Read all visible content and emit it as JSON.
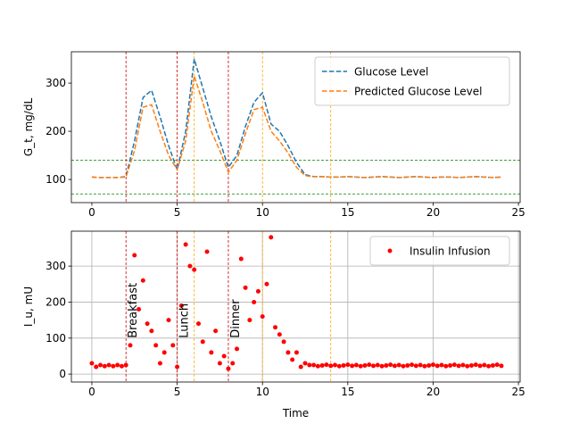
{
  "chart_data": [
    {
      "type": "line",
      "ylabel": "G_t, mg/dL",
      "x": [
        0,
        0.5,
        1,
        1.5,
        2,
        2.5,
        3,
        3.5,
        4,
        4.5,
        5,
        5.5,
        6,
        6.5,
        7,
        7.5,
        8,
        8.5,
        9,
        9.5,
        10,
        10.5,
        11,
        11.5,
        12,
        12.5,
        13,
        13.5,
        14,
        14.5,
        15,
        15.5,
        16,
        16.5,
        17,
        17.5,
        18,
        18.5,
        19,
        19.5,
        20,
        20.5,
        21,
        21.5,
        22,
        22.5,
        23,
        23.5,
        24
      ],
      "series": [
        {
          "name": "Glucose Level",
          "color": "#1f77b4",
          "values": [
            105,
            104,
            104,
            104,
            106,
            180,
            270,
            285,
            230,
            170,
            120,
            200,
            350,
            290,
            230,
            180,
            125,
            150,
            210,
            260,
            280,
            215,
            200,
            170,
            135,
            110,
            106,
            106,
            105,
            105,
            106,
            105,
            104,
            105,
            106,
            105,
            104,
            105,
            106,
            105,
            104,
            105,
            105,
            104,
            105,
            106,
            105,
            104,
            105
          ]
        },
        {
          "name": "Predicted Glucose Level",
          "color": "#ff7f0e",
          "values": [
            105,
            104,
            104,
            104,
            105,
            160,
            250,
            255,
            200,
            150,
            120,
            180,
            315,
            260,
            200,
            160,
            115,
            140,
            195,
            245,
            250,
            200,
            180,
            155,
            125,
            108,
            106,
            106,
            105,
            105,
            106,
            105,
            104,
            105,
            106,
            105,
            104,
            105,
            106,
            105,
            104,
            105,
            105,
            104,
            105,
            106,
            105,
            104,
            105
          ]
        }
      ],
      "xlim": [
        -1.2,
        25.1
      ],
      "ylim": [
        52,
        365
      ],
      "xticks": [
        0,
        5,
        10,
        15,
        20,
        25
      ],
      "yticks": [
        100,
        200,
        300
      ],
      "grid": false,
      "legend": "upper right",
      "hlines": [
        {
          "value": 70,
          "color": "green"
        },
        {
          "value": 140,
          "color": "green"
        }
      ],
      "vlines": [
        {
          "value": 2,
          "color": "#cc0000"
        },
        {
          "value": 5,
          "color": "#cc0000"
        },
        {
          "value": 8,
          "color": "#cc0000"
        },
        {
          "value": 6,
          "color": "orange"
        },
        {
          "value": 10,
          "color": "orange"
        },
        {
          "value": 14,
          "color": "orange"
        }
      ]
    },
    {
      "type": "scatter",
      "ylabel": "I_u, mU",
      "xlabel": "Time",
      "x": [
        0,
        0.25,
        0.5,
        0.75,
        1,
        1.25,
        1.5,
        1.75,
        2,
        2.25,
        2.5,
        2.75,
        3,
        3.25,
        3.5,
        3.75,
        4,
        4.25,
        4.5,
        4.75,
        5,
        5.25,
        5.5,
        5.75,
        6,
        6.25,
        6.5,
        6.75,
        7,
        7.25,
        7.5,
        7.75,
        8,
        8.25,
        8.5,
        8.75,
        9,
        9.25,
        9.5,
        9.75,
        10,
        10.25,
        10.5,
        10.75,
        11,
        11.25,
        11.5,
        11.75,
        12,
        12.25,
        12.5,
        12.75,
        13,
        13.25,
        13.5,
        13.75,
        14,
        14.25,
        14.5,
        14.75,
        15,
        15.25,
        15.5,
        15.75,
        16,
        16.25,
        16.5,
        16.75,
        17,
        17.25,
        17.5,
        17.75,
        18,
        18.25,
        18.5,
        18.75,
        19,
        19.25,
        19.5,
        19.75,
        20,
        20.25,
        20.5,
        20.75,
        21,
        21.25,
        21.5,
        21.75,
        22,
        22.25,
        22.5,
        22.75,
        23,
        23.25,
        23.5,
        23.75,
        24
      ],
      "series": [
        {
          "name": "Insulin Infusion",
          "color": "red",
          "values": [
            30,
            20,
            25,
            22,
            25,
            22,
            25,
            22,
            25,
            80,
            330,
            180,
            260,
            140,
            120,
            80,
            30,
            60,
            150,
            80,
            20,
            190,
            360,
            300,
            290,
            140,
            90,
            340,
            60,
            120,
            30,
            50,
            15,
            30,
            70,
            320,
            240,
            150,
            200,
            230,
            160,
            250,
            380,
            130,
            110,
            90,
            60,
            40,
            60,
            20,
            30,
            25,
            25,
            22,
            24,
            26,
            23,
            25,
            22,
            24,
            26,
            23,
            25,
            22,
            24,
            26,
            23,
            25,
            22,
            24,
            26,
            23,
            25,
            22,
            24,
            26,
            23,
            25,
            22,
            24,
            26,
            23,
            25,
            22,
            24,
            26,
            23,
            25,
            22,
            24,
            26,
            23,
            25,
            22,
            24,
            26,
            23
          ]
        }
      ],
      "xlim": [
        -1.2,
        25.1
      ],
      "ylim": [
        -22,
        397
      ],
      "xticks": [
        0,
        5,
        10,
        15,
        20,
        25
      ],
      "yticks": [
        0,
        100,
        200,
        300
      ],
      "grid": true,
      "legend": "upper right",
      "vlines": [
        {
          "value": 2,
          "color": "#cc0000"
        },
        {
          "value": 5,
          "color": "#cc0000"
        },
        {
          "value": 8,
          "color": "#cc0000"
        },
        {
          "value": 6,
          "color": "orange"
        },
        {
          "value": 10,
          "color": "orange"
        },
        {
          "value": 14,
          "color": "orange"
        }
      ],
      "annotations": [
        {
          "text": "Breakfast",
          "x": 2,
          "y": 100
        },
        {
          "text": "Lunch",
          "x": 5,
          "y": 100
        },
        {
          "text": "Dinner",
          "x": 8,
          "y": 100
        }
      ]
    }
  ]
}
